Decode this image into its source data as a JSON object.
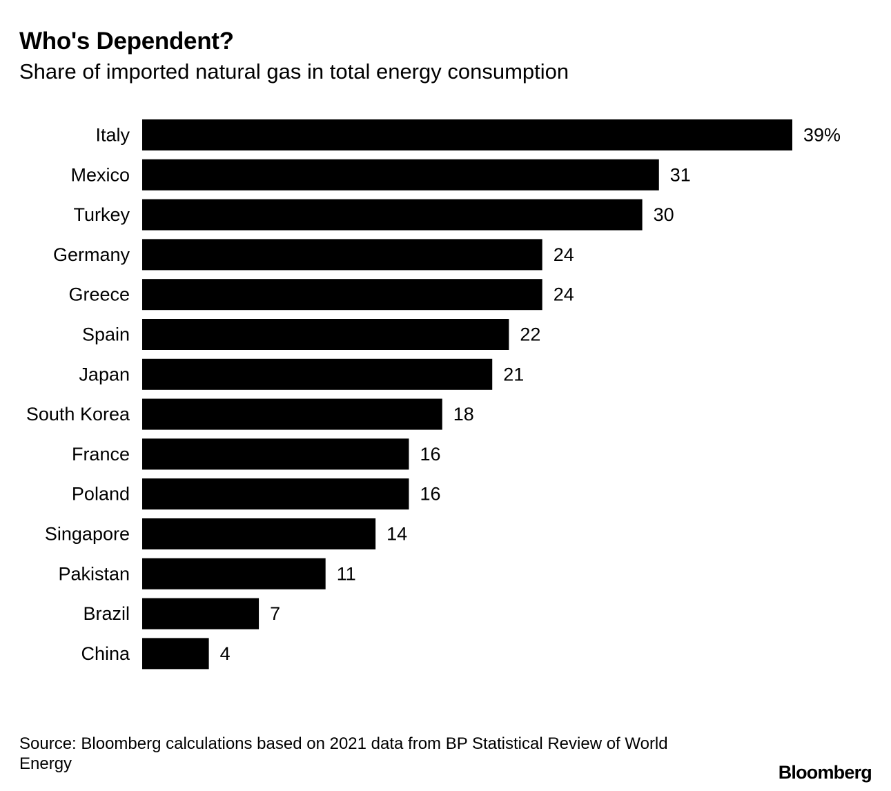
{
  "chart_data": {
    "type": "bar",
    "orientation": "horizontal",
    "title": "Who's Dependent?",
    "subtitle": "Share of imported natural gas in total energy consumption",
    "categories": [
      "Italy",
      "Mexico",
      "Turkey",
      "Germany",
      "Greece",
      "Spain",
      "Japan",
      "South Korea",
      "France",
      "Poland",
      "Singapore",
      "Pakistan",
      "Brazil",
      "China"
    ],
    "values": [
      39,
      31,
      30,
      24,
      24,
      22,
      21,
      18,
      16,
      16,
      14,
      11,
      7,
      4
    ],
    "value_labels": [
      "39%",
      "31",
      "30",
      "24",
      "24",
      "22",
      "21",
      "18",
      "16",
      "16",
      "14",
      "11",
      "7",
      "4"
    ],
    "unit": "%",
    "xlim": [
      0,
      39
    ],
    "bar_color": "#000000",
    "grid": false,
    "xlabel": "",
    "ylabel": ""
  },
  "footer": {
    "source": "Source: Bloomberg calculations based on 2021 data from BP Statistical Review of World Energy",
    "brand": "Bloomberg"
  }
}
